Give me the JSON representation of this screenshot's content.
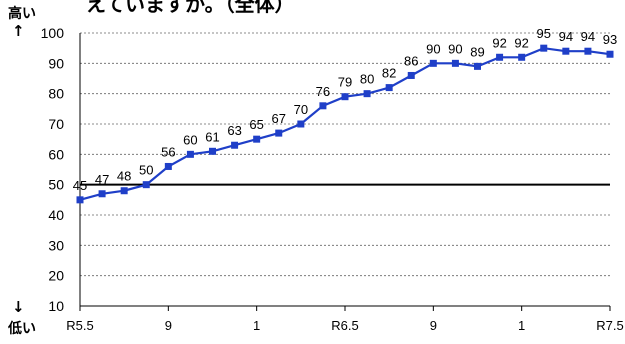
{
  "page": {
    "title": "えていますか。（全体）",
    "high_label": "高い",
    "low_label": "低い",
    "up_arrow": "↑",
    "down_arrow": "↓"
  },
  "chart_data": {
    "type": "line",
    "title": "",
    "xlabel": "",
    "ylabel": "",
    "ylim": [
      10,
      100
    ],
    "yticks": [
      10,
      20,
      30,
      40,
      50,
      60,
      70,
      80,
      90,
      100
    ],
    "reference_line": 50,
    "grid": "horizontal dashed",
    "x_tick_labels": [
      {
        "index": 0,
        "label": "R5.5"
      },
      {
        "index": 4,
        "label": "9"
      },
      {
        "index": 8,
        "label": "1"
      },
      {
        "index": 12,
        "label": "R6.5"
      },
      {
        "index": 16,
        "label": "9"
      },
      {
        "index": 20,
        "label": "1"
      },
      {
        "index": 24,
        "label": "R7.5"
      }
    ],
    "values": [
      45,
      47,
      48,
      50,
      56,
      60,
      61,
      63,
      65,
      67,
      70,
      76,
      79,
      80,
      82,
      86,
      90,
      90,
      89,
      92,
      92,
      95,
      94,
      94,
      93
    ],
    "line_color": "#1f3fc8",
    "marker": "square"
  }
}
